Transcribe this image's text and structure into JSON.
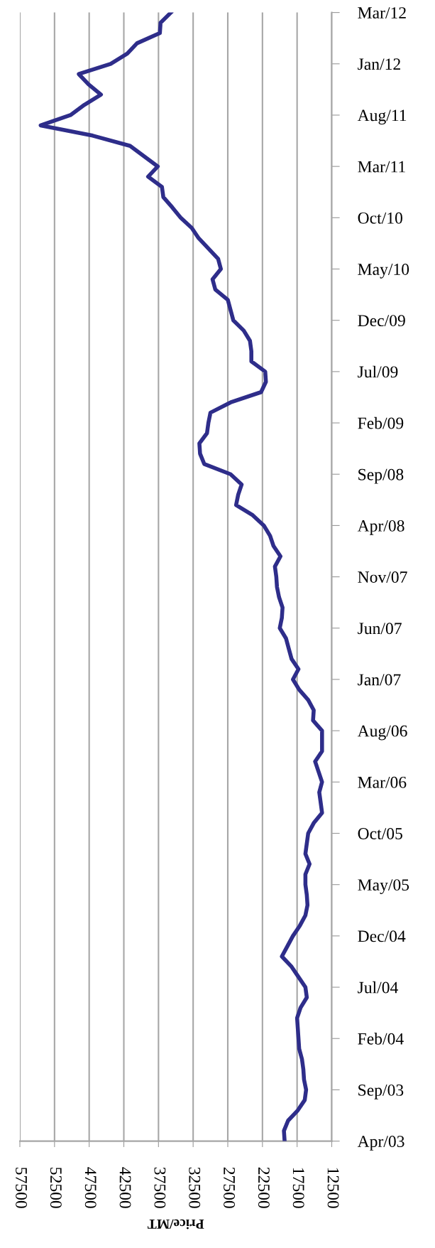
{
  "chart_data": {
    "type": "line",
    "orientation": "horizontal",
    "xlabel": "Price/MT",
    "categories": [
      "Mar/12",
      null,
      null,
      null,
      null,
      "Jan/12",
      null,
      null,
      null,
      null,
      "Aug/11",
      null,
      null,
      null,
      null,
      "Mar/11",
      null,
      null,
      null,
      null,
      "Oct/10",
      null,
      null,
      null,
      null,
      "May/10",
      null,
      null,
      null,
      null,
      "Dec/09",
      null,
      null,
      null,
      null,
      "Jul/09",
      null,
      null,
      null,
      null,
      "Feb/09",
      null,
      null,
      null,
      null,
      "Sep/08",
      null,
      null,
      null,
      null,
      "Apr/08",
      null,
      null,
      null,
      null,
      "Nov/07",
      null,
      null,
      null,
      null,
      "Jun/07",
      null,
      null,
      null,
      null,
      "Jan/07",
      null,
      null,
      null,
      null,
      "Aug/06",
      null,
      null,
      null,
      null,
      "Mar/06",
      null,
      null,
      null,
      null,
      "Oct/05",
      null,
      null,
      null,
      null,
      "May/05",
      null,
      null,
      null,
      null,
      "Dec/04",
      null,
      null,
      null,
      null,
      "Jul/04",
      null,
      null,
      null,
      null,
      "Feb/04",
      null,
      null,
      null,
      null,
      "Sep/03",
      null,
      null,
      null,
      null,
      "Apr/03"
    ],
    "series": [
      {
        "color": "#2e2d8a",
        "values": [
          35700,
          37200,
          37300,
          40600,
          42000,
          44400,
          49000,
          47600,
          45800,
          48200,
          50200,
          54500,
          47000,
          41600,
          39600,
          37600,
          39000,
          37000,
          36800,
          35500,
          34300,
          32700,
          31700,
          30300,
          28900,
          28500,
          29700,
          29300,
          27500,
          27100,
          26700,
          25200,
          24300,
          24100,
          24100,
          22100,
          22000,
          22700,
          27100,
          30000,
          30300,
          30500,
          31600,
          31500,
          30900,
          27100,
          25500,
          26000,
          26300,
          23900,
          22300,
          21400,
          20900,
          19900,
          20700,
          20500,
          20400,
          20100,
          19600,
          19700,
          20000,
          19100,
          18700,
          18300,
          17300,
          18100,
          17200,
          15900,
          15100,
          15200,
          13900,
          13900,
          13900,
          14900,
          14400,
          13900,
          14300,
          14100,
          13900,
          15100,
          15900,
          16100,
          16300,
          15700,
          16300,
          16300,
          16100,
          16000,
          16300,
          17100,
          18100,
          18900,
          19700,
          18300,
          17300,
          16300,
          16100,
          17000,
          17500,
          17400,
          17300,
          17200,
          16800,
          16600,
          16500,
          16200,
          16400,
          17400,
          18800,
          19400,
          19300
        ]
      }
    ],
    "xlim": [
      57500,
      12500
    ],
    "xticks": [
      57500,
      52500,
      47500,
      42500,
      37500,
      32500,
      27500,
      22500,
      17500,
      12500
    ],
    "grid": "x",
    "line_style": "solid",
    "marker": "none"
  }
}
